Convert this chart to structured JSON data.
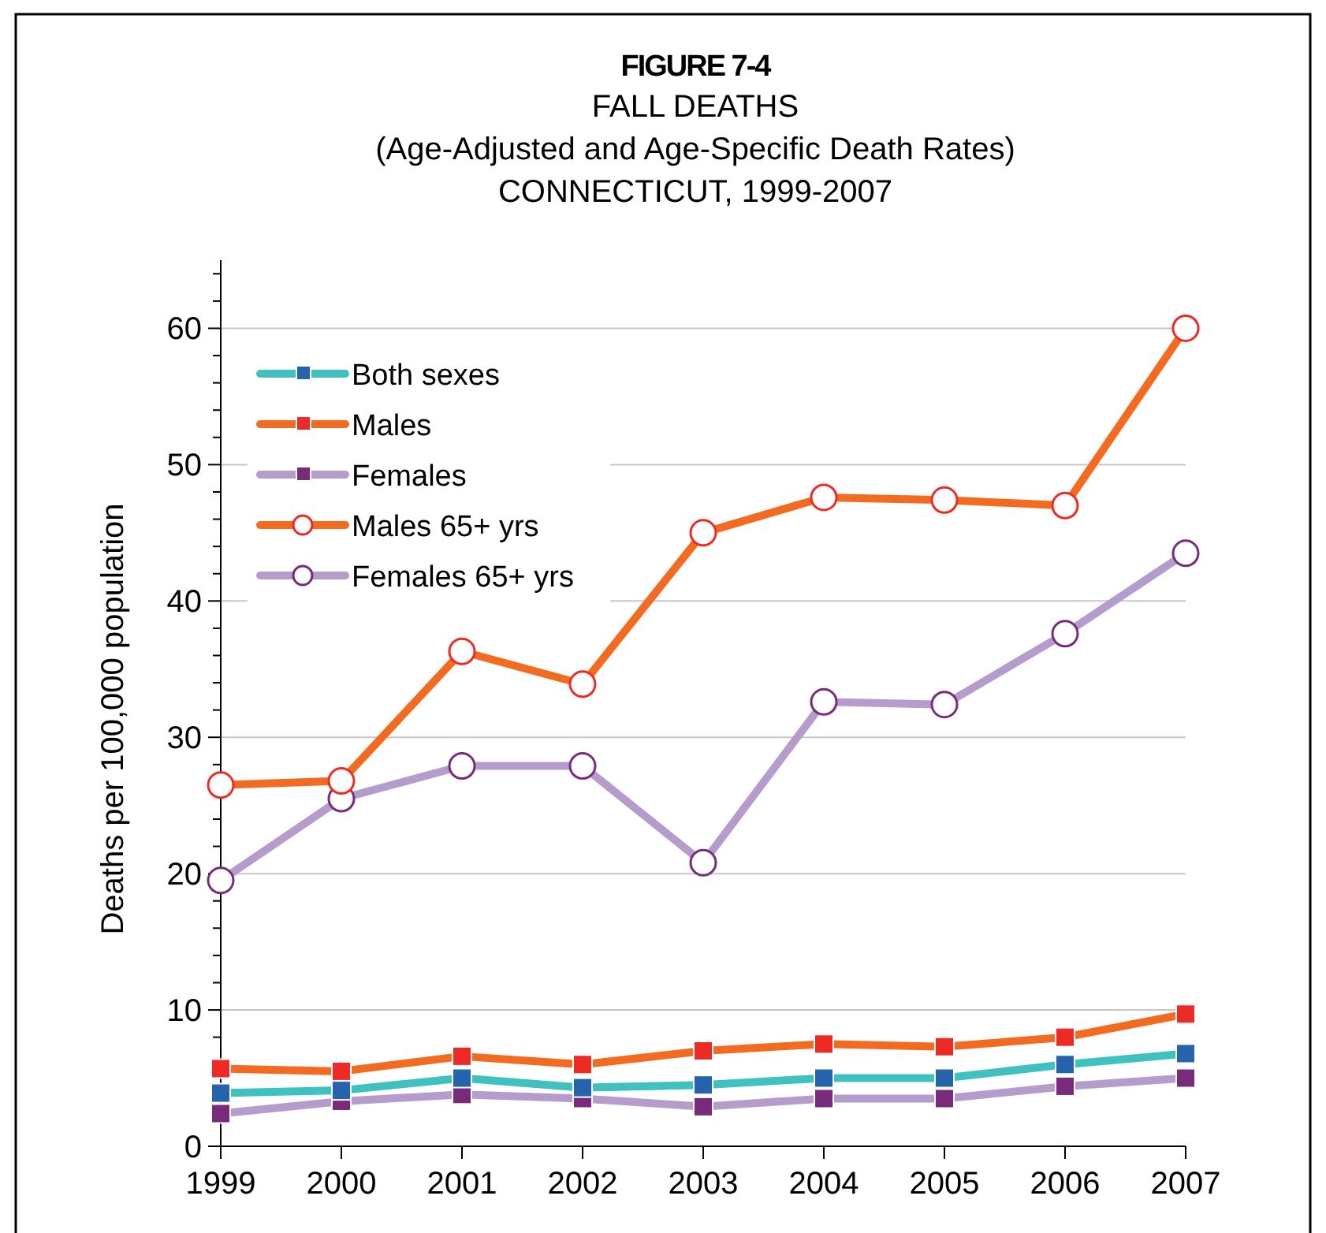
{
  "chart_data": {
    "type": "line",
    "title": "FIGURE 7-4",
    "subtitle": "FALL DEATHS\n(Age-Adjusted and Age-Specific Death Rates)\nCONNECTICUT, 1999-2007",
    "ylabel": "Deaths per 100,000 population",
    "categories": [
      "1999",
      "2000",
      "2001",
      "2002",
      "2003",
      "2004",
      "2005",
      "2006",
      "2007"
    ],
    "ylim": [
      0,
      65
    ],
    "yticks": [
      0,
      {
        "value": 2,
        "label": null
      },
      {
        "value": 4,
        "label": null
      },
      {
        "value": 6,
        "label": null
      },
      {
        "value": 8,
        "label": null
      },
      10,
      {
        "value": 12,
        "label": null
      },
      {
        "value": 14,
        "label": null
      },
      {
        "value": 16,
        "label": null
      },
      {
        "value": 18,
        "label": null
      },
      20,
      {
        "value": 22,
        "label": null
      },
      {
        "value": 24,
        "label": null
      },
      {
        "value": 26,
        "label": null
      },
      {
        "value": 28,
        "label": null
      },
      30,
      {
        "value": 32,
        "label": null
      },
      {
        "value": 34,
        "label": null
      },
      {
        "value": 36,
        "label": null
      },
      {
        "value": 38,
        "label": null
      },
      40,
      {
        "value": 42,
        "label": null
      },
      {
        "value": 44,
        "label": null
      },
      {
        "value": 46,
        "label": null
      },
      {
        "value": 48,
        "label": null
      },
      50,
      {
        "value": 52,
        "label": null
      },
      {
        "value": 54,
        "label": null
      },
      {
        "value": 56,
        "label": null
      },
      {
        "value": 58,
        "label": null
      },
      60,
      {
        "value": 62,
        "label": null
      },
      {
        "value": 64,
        "label": null
      }
    ],
    "grid": "y",
    "legend": "top left",
    "line_style": "solid",
    "series": [
      {
        "name": "Both sexes",
        "color": "#3fc1bf",
        "marker": "square",
        "values": [
          3.9,
          4.1,
          5.0,
          4.3,
          4.5,
          5.0,
          5.0,
          6.0,
          6.8
        ]
      },
      {
        "name": "Males",
        "color": "#f26b21",
        "marker": "square",
        "values": [
          5.7,
          5.5,
          6.6,
          6.0,
          7.0,
          7.5,
          7.3,
          8.0,
          9.7
        ]
      },
      {
        "name": "Females",
        "color": "#b59ccc",
        "marker": "square",
        "values": [
          2.4,
          3.3,
          3.8,
          3.5,
          2.9,
          3.5,
          3.5,
          4.4,
          5.0
        ]
      },
      {
        "name": "Males 65+ yrs",
        "color": "#f26b21",
        "marker": "circle",
        "values": [
          26.5,
          26.8,
          36.3,
          33.9,
          45.0,
          47.6,
          47.4,
          47.0,
          60.0
        ]
      },
      {
        "name": "Females 65+ yrs",
        "color": "#b59ccc",
        "marker": "circle",
        "values": [
          19.5,
          25.5,
          27.9,
          27.9,
          20.8,
          32.6,
          32.4,
          37.6,
          43.5
        ]
      }
    ]
  }
}
